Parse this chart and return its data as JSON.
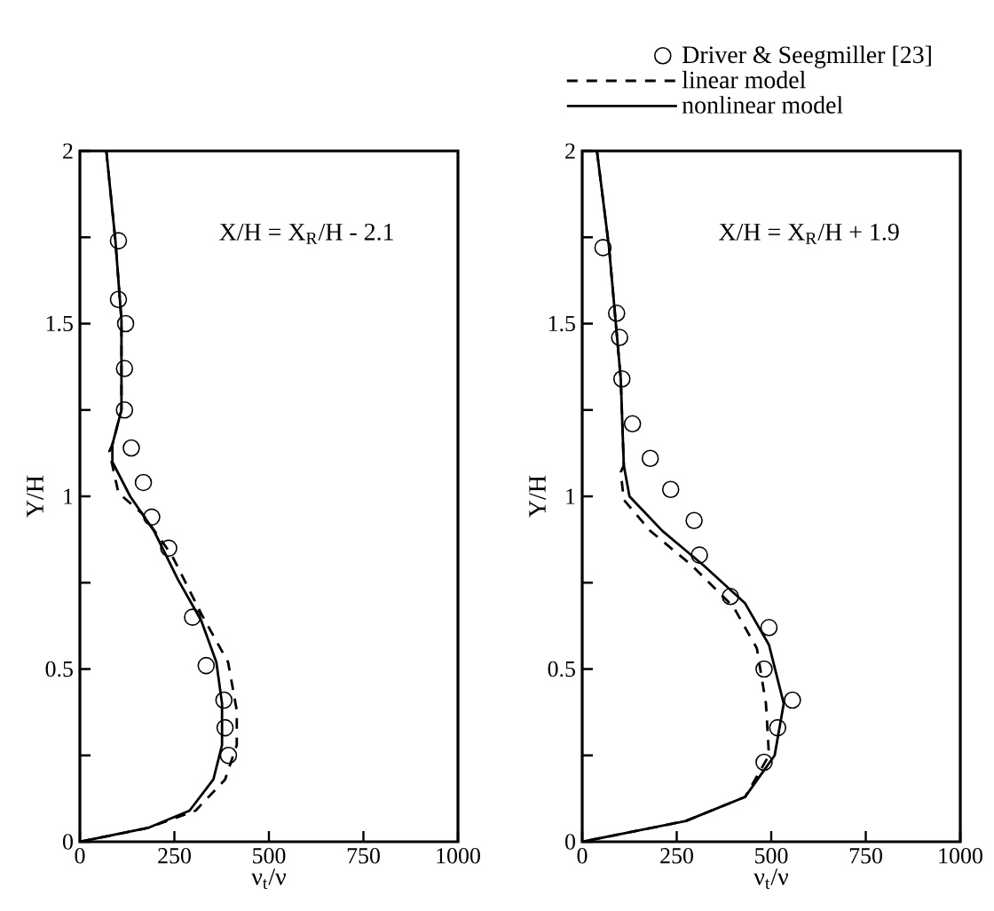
{
  "chart_data": [
    {
      "type": "line",
      "xlabel": "ν$_{t}$/ν",
      "ylabel": "Y/H",
      "annotations": [
        "X/H = X$_{R}$/H - 2.1"
      ],
      "xlim": [
        0,
        1000
      ],
      "ylim": [
        0,
        2
      ],
      "xticks": [
        0,
        250,
        500,
        750,
        1000
      ],
      "yticks": [
        0,
        {
          "value": 0.25,
          "label": null
        },
        0.5,
        {
          "value": 0.75,
          "label": null
        },
        1,
        {
          "value": 1.25,
          "label": null
        },
        1.5,
        {
          "value": 1.75,
          "label": null
        },
        2
      ],
      "legend": "top right",
      "grid": false,
      "series": [
        {
          "name": "Driver & Seegmiller [23]",
          "type": "scatter",
          "marker": "circle",
          "color": "#000000",
          "x": [
            102,
            102,
            121,
            118,
            118,
            136,
            168,
            190,
            235,
            298,
            334,
            381,
            384,
            393
          ],
          "values": [
            1.74,
            1.57,
            1.5,
            1.37,
            1.25,
            1.14,
            1.04,
            0.94,
            0.85,
            0.65,
            0.51,
            0.41,
            0.33,
            0.25
          ]
        },
        {
          "name": "linear model",
          "type": "line",
          "line_style": "dashed",
          "color": "#000000",
          "x": [
            70,
            94,
            110,
            110,
            86,
            78,
            102,
            165,
            243,
            321,
            392,
            415,
            415,
            384,
            306,
            180,
            0
          ],
          "values": [
            2,
            1.74,
            1.51,
            1.25,
            1.15,
            1.13,
            1.01,
            0.95,
            0.83,
            0.66,
            0.52,
            0.38,
            0.28,
            0.18,
            0.09,
            0.04,
            0
          ]
        },
        {
          "name": "nonlinear model",
          "type": "line",
          "line_style": "solid",
          "color": "#000000",
          "x": [
            70,
            94,
            110,
            110,
            86,
            86,
            133,
            196,
            259,
            321,
            361,
            376,
            376,
            353,
            290,
            180,
            0
          ],
          "values": [
            2,
            1.74,
            1.51,
            1.25,
            1.15,
            1.1,
            1,
            0.9,
            0.76,
            0.64,
            0.52,
            0.4,
            0.28,
            0.18,
            0.09,
            0.04,
            0
          ]
        }
      ]
    },
    {
      "type": "line",
      "xlabel": "ν$_{t}$/ν",
      "ylabel": "Y/H",
      "annotations": [
        "X/H = X$_{R}$/H + 1.9"
      ],
      "xlim": [
        0,
        1000
      ],
      "ylim": [
        0,
        2
      ],
      "xticks": [
        0,
        250,
        500,
        750,
        1000
      ],
      "yticks": [
        0,
        {
          "value": 0.25,
          "label": null
        },
        0.5,
        {
          "value": 0.75,
          "label": null
        },
        1,
        {
          "value": 1.25,
          "label": null
        },
        1.5,
        {
          "value": 1.75,
          "label": null
        },
        2
      ],
      "grid": false,
      "series": [
        {
          "type": "scatter",
          "marker": "circle",
          "color": "#000000",
          "x": [
            55,
            91,
            99,
            105,
            133,
            180,
            234,
            296,
            310,
            392,
            494,
            481,
            556,
            517,
            481
          ],
          "values": [
            1.72,
            1.53,
            1.46,
            1.34,
            1.21,
            1.11,
            1.02,
            0.93,
            0.83,
            0.71,
            0.62,
            0.5,
            0.41,
            0.33,
            0.23
          ]
        },
        {
          "type": "line",
          "line_style": "dashed",
          "color": "#000000",
          "x": [
            39,
            71,
            102,
            110,
            102,
            110,
            180,
            290,
            400,
            462,
            486,
            494,
            431,
            274,
            0
          ],
          "values": [
            2,
            1.72,
            1.34,
            1.09,
            1.07,
            0.99,
            0.9,
            0.8,
            0.68,
            0.56,
            0.4,
            0.25,
            0.13,
            0.06,
            0
          ]
        },
        {
          "type": "line",
          "line_style": "solid",
          "color": "#000000",
          "x": [
            39,
            71,
            102,
            110,
            125,
            212,
            321,
            431,
            494,
            533,
            509,
            431,
            274,
            0
          ],
          "values": [
            2,
            1.72,
            1.34,
            1.09,
            1,
            0.9,
            0.8,
            0.69,
            0.57,
            0.4,
            0.25,
            0.13,
            0.06,
            0
          ]
        }
      ]
    }
  ]
}
